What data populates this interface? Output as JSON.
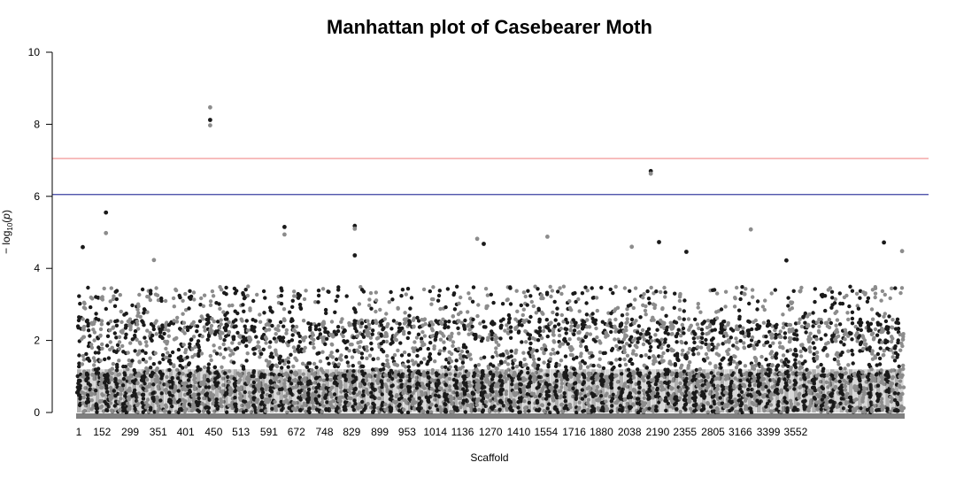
{
  "chart_data": {
    "type": "scatter",
    "subtype": "manhattan",
    "title": "Manhattan plot of Casebearer Moth",
    "xlabel": "Scaffold",
    "ylabel": "−log10(p)",
    "ylabel_parts": {
      "prefix": "− log",
      "sub": "10",
      "open": "(",
      "var": "p",
      "close": ")"
    },
    "ylim": [
      0,
      10
    ],
    "yticks": [
      0,
      2,
      4,
      6,
      8,
      10
    ],
    "x_tick_labels": [
      "1",
      "152",
      "299",
      "351",
      "401",
      "450",
      "513",
      "591",
      "672",
      "748",
      "829",
      "899",
      "953",
      "1014",
      "1136",
      "1270",
      "1410",
      "1554",
      "1716",
      "1880",
      "2038",
      "2190",
      "2355",
      "2805",
      "3166",
      "3399",
      "3552"
    ],
    "x_tick_fractions": [
      0.0,
      0.026,
      0.06,
      0.094,
      0.127,
      0.161,
      0.194,
      0.228,
      0.261,
      0.295,
      0.328,
      0.362,
      0.395,
      0.429,
      0.462,
      0.496,
      0.53,
      0.563,
      0.597,
      0.63,
      0.664,
      0.698,
      0.731,
      0.765,
      0.798,
      0.832,
      0.865
    ],
    "suggestive_line": 6.05,
    "genomewide_line": 7.05,
    "line_colors": {
      "suggestive": "#3a3fa0",
      "genomewide": "#f08a8a"
    },
    "point_colors": [
      "#1a1a1a",
      "#8c8c8c"
    ],
    "grid": false,
    "legend": "none",
    "notable_points": [
      {
        "x_frac": 0.161,
        "y": 8.47
      },
      {
        "x_frac": 0.161,
        "y": 8.12
      },
      {
        "x_frac": 0.161,
        "y": 7.97
      },
      {
        "x_frac": 0.694,
        "y": 6.7
      },
      {
        "x_frac": 0.694,
        "y": 6.63
      },
      {
        "x_frac": 0.035,
        "y": 5.55
      },
      {
        "x_frac": 0.035,
        "y": 4.98
      },
      {
        "x_frac": 0.251,
        "y": 5.15
      },
      {
        "x_frac": 0.251,
        "y": 4.94
      },
      {
        "x_frac": 0.336,
        "y": 5.18
      },
      {
        "x_frac": 0.336,
        "y": 5.1
      },
      {
        "x_frac": 0.336,
        "y": 4.36
      },
      {
        "x_frac": 0.484,
        "y": 4.82
      },
      {
        "x_frac": 0.492,
        "y": 4.68
      },
      {
        "x_frac": 0.569,
        "y": 4.88
      },
      {
        "x_frac": 0.704,
        "y": 4.73
      },
      {
        "x_frac": 0.815,
        "y": 5.08
      },
      {
        "x_frac": 0.976,
        "y": 4.72
      },
      {
        "x_frac": 0.998,
        "y": 4.48
      },
      {
        "x_frac": 0.007,
        "y": 4.59
      },
      {
        "x_frac": 0.093,
        "y": 4.23
      },
      {
        "x_frac": 0.858,
        "y": 4.22
      },
      {
        "x_frac": 0.671,
        "y": 4.6
      },
      {
        "x_frac": 0.737,
        "y": 4.46
      }
    ]
  }
}
